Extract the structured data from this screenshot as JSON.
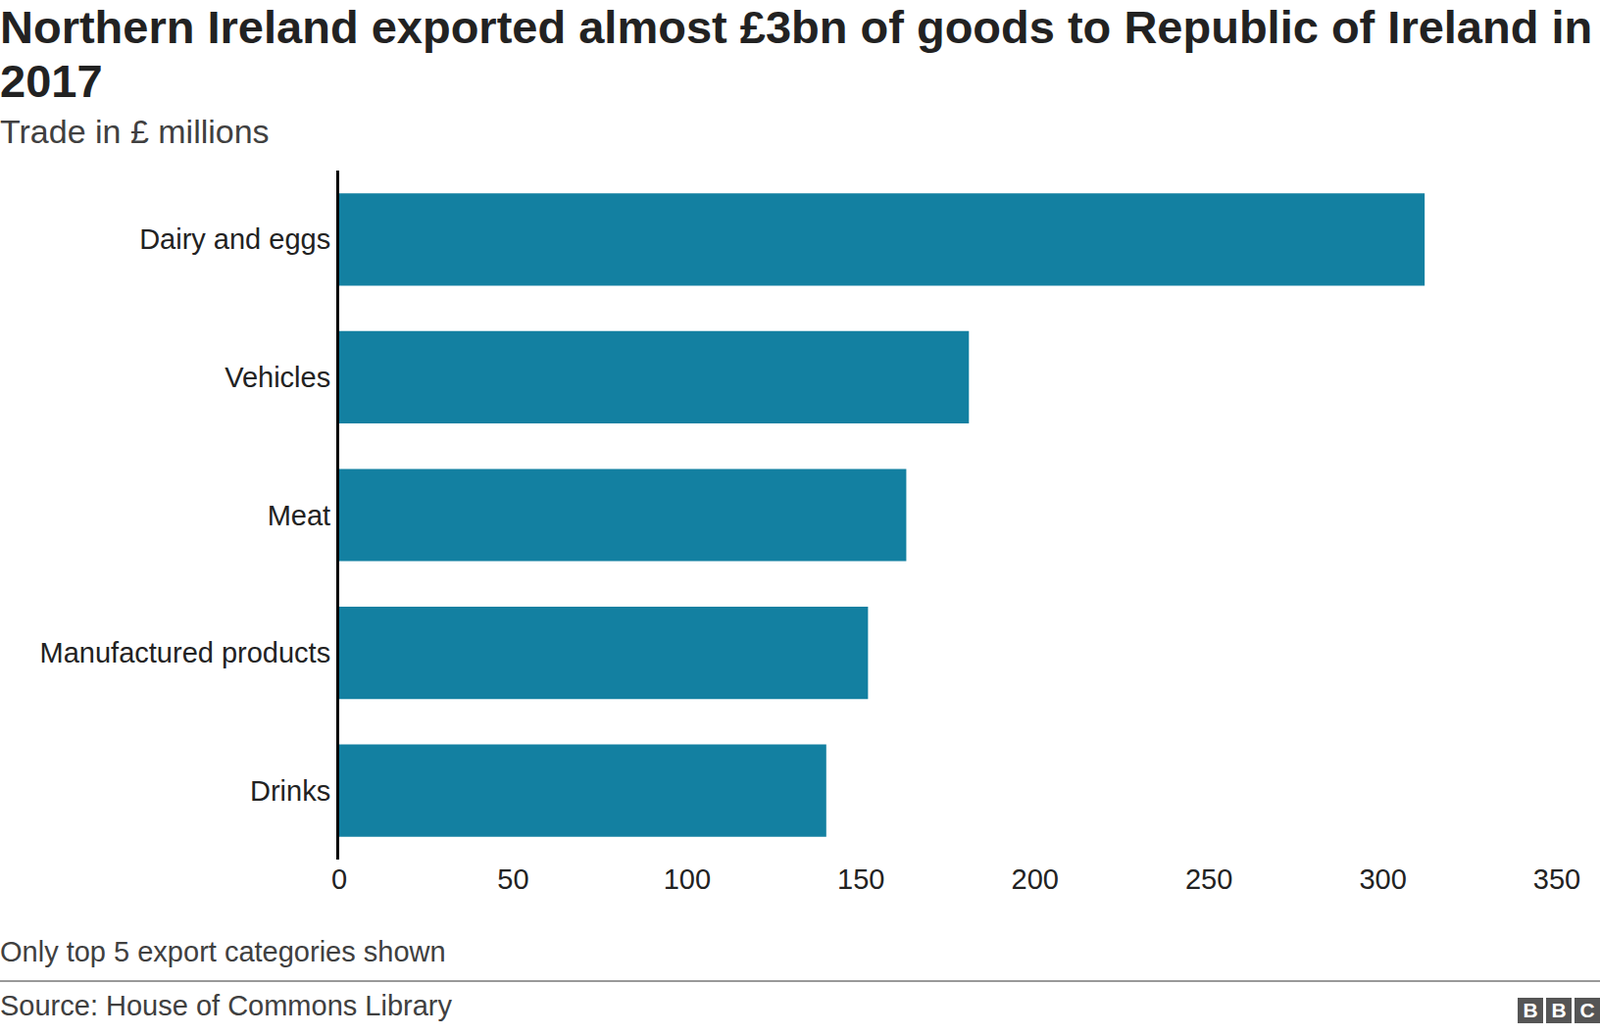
{
  "chart_data": {
    "type": "bar",
    "title": "Northern Ireland exported almost £3bn of goods to Republic of Ireland in 2017",
    "subtitle": "Trade in £ millions",
    "orientation": "horizontal",
    "categories": [
      "Dairy and eggs",
      "Vehicles",
      "Meat",
      "Manufactured products",
      "Drinks"
    ],
    "values": [
      312,
      181,
      163,
      152,
      140
    ],
    "color": "#1380a1",
    "xlim": [
      0,
      350
    ],
    "xticks": [
      0,
      50,
      100,
      150,
      200,
      250,
      300,
      350
    ],
    "grid": false,
    "data_labels": false,
    "footnote": "Only top 5 export categories shown",
    "source": "Source: House of Commons Library",
    "logo": "BBC"
  }
}
